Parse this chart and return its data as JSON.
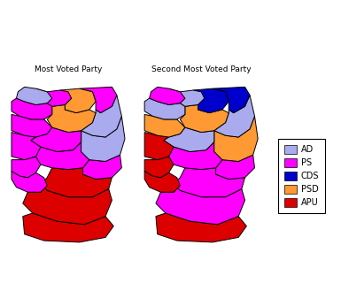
{
  "title_left": "Most Voted Party",
  "title_right": "Second Most Voted Party",
  "parties": [
    "AD",
    "PS",
    "CDS",
    "PSD",
    "APU"
  ],
  "colors": {
    "AD": "#aaaaee",
    "PS": "#ff00ff",
    "CDS": "#0000cc",
    "PSD": "#ff9933",
    "APU": "#dd0000"
  },
  "most_voted": {
    "Viana do Castelo": "AD",
    "Braga": "PS",
    "Vila Real": "PSD",
    "Braganca": "PS",
    "Porto": "PS",
    "Viseu": "PSD",
    "Guarda": "AD",
    "Aveiro": "PS",
    "Coimbra": "PS",
    "Castelo Branco": "AD",
    "Leiria": "PS",
    "Santarem": "PS",
    "Lisboa": "PS",
    "Portalegre": "PS",
    "Setubal": "PS",
    "Evora": "APU",
    "Beja": "APU",
    "Faro": "APU"
  },
  "second_voted": {
    "Viana do Castelo": "PS",
    "Braga": "AD",
    "Vila Real": "CDS",
    "Braganca": "CDS",
    "Porto": "AD",
    "Viseu": "PSD",
    "Guarda": "AD",
    "Aveiro": "PSD",
    "Coimbra": "AD",
    "Castelo Branco": "PSD",
    "Leiria": "APU",
    "Santarem": "PS",
    "Lisboa": "APU",
    "Portalegre": "PS",
    "Setubal": "APU",
    "Evora": "PS",
    "Beja": "PS",
    "Faro": "APU"
  },
  "background": "#ffffff",
  "border_color": "#000000",
  "figsize": [
    3.85,
    3.46
  ],
  "dpi": 100
}
